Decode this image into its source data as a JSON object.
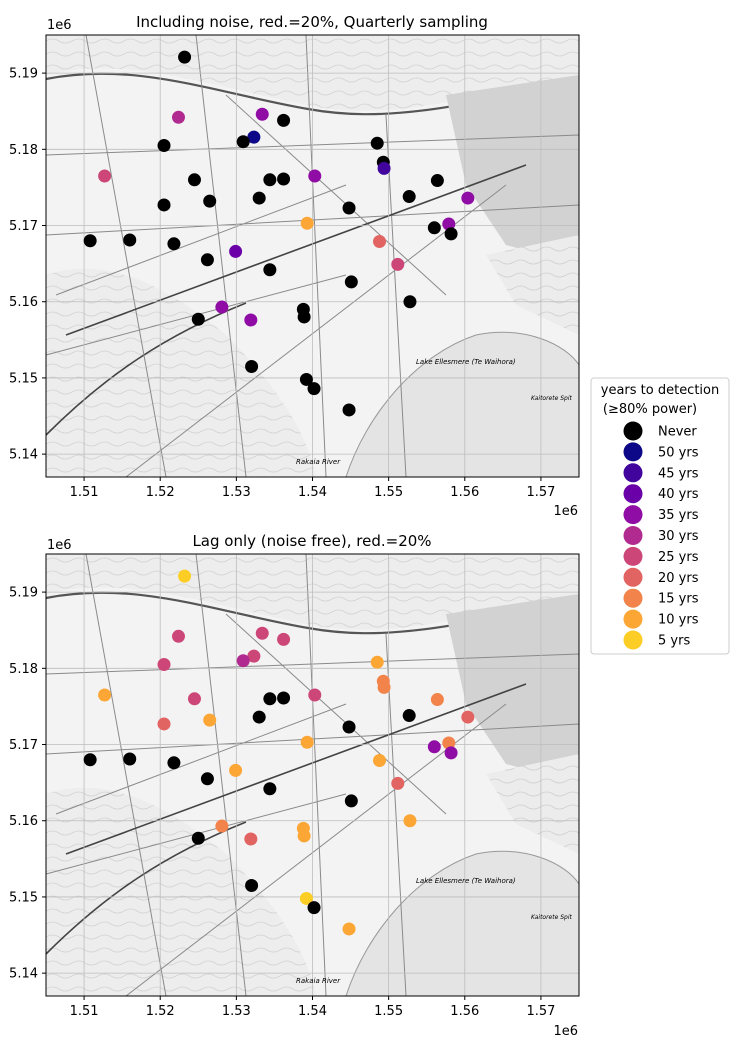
{
  "chart_data": [
    {
      "type": "scatter",
      "title": "Including noise, red.=20%, Quarterly sampling",
      "x_offset_label": "1e6",
      "y_offset_label": "1e6",
      "xlim": [
        1.505,
        1.575
      ],
      "ylim": [
        5.137,
        5.195
      ],
      "x_ticks": [
        1.51,
        1.52,
        1.53,
        1.54,
        1.55,
        1.56,
        1.57
      ],
      "x_tick_labels": [
        "1.51",
        "1.52",
        "1.53",
        "1.54",
        "1.55",
        "1.56",
        "1.57"
      ],
      "y_ticks": [
        5.14,
        5.15,
        5.16,
        5.17,
        5.18,
        5.19
      ],
      "y_tick_labels": [
        "5.14",
        "5.15",
        "5.16",
        "5.17",
        "5.18",
        "5.19"
      ],
      "basemap_labels": [
        "Lake Ellesmere (Te Waihora)",
        "Rakaia River",
        "Kaitorete Spit"
      ],
      "points": [
        {
          "x": 1.5232,
          "y": 5.1921,
          "years": "Never"
        },
        {
          "x": 1.5224,
          "y": 5.1842,
          "years": "30 yrs"
        },
        {
          "x": 1.5334,
          "y": 5.1846,
          "years": "35 yrs"
        },
        {
          "x": 1.5362,
          "y": 5.1838,
          "years": "Never"
        },
        {
          "x": 1.5323,
          "y": 5.1816,
          "years": "50 yrs"
        },
        {
          "x": 1.5309,
          "y": 5.181,
          "years": "Never"
        },
        {
          "x": 1.5205,
          "y": 5.1805,
          "years": "Never"
        },
        {
          "x": 1.5485,
          "y": 5.1808,
          "years": "Never"
        },
        {
          "x": 1.5493,
          "y": 5.1783,
          "years": "Never"
        },
        {
          "x": 1.5494,
          "y": 5.1775,
          "years": "45 yrs"
        },
        {
          "x": 1.5127,
          "y": 5.1765,
          "years": "25 yrs"
        },
        {
          "x": 1.5403,
          "y": 5.1765,
          "years": "35 yrs"
        },
        {
          "x": 1.5245,
          "y": 5.176,
          "years": "Never"
        },
        {
          "x": 1.5344,
          "y": 5.176,
          "years": "Never"
        },
        {
          "x": 1.5362,
          "y": 5.1761,
          "years": "Never"
        },
        {
          "x": 1.5564,
          "y": 5.1759,
          "years": "Never"
        },
        {
          "x": 1.5527,
          "y": 5.1738,
          "years": "Never"
        },
        {
          "x": 1.5604,
          "y": 5.1736,
          "years": "35 yrs"
        },
        {
          "x": 1.533,
          "y": 5.1736,
          "years": "Never"
        },
        {
          "x": 1.5265,
          "y": 5.1732,
          "years": "Never"
        },
        {
          "x": 1.5205,
          "y": 5.1727,
          "years": "Never"
        },
        {
          "x": 1.5448,
          "y": 5.1723,
          "years": "Never"
        },
        {
          "x": 1.5393,
          "y": 5.1703,
          "years": "10 yrs"
        },
        {
          "x": 1.5579,
          "y": 5.1702,
          "years": "35 yrs"
        },
        {
          "x": 1.556,
          "y": 5.1697,
          "years": "Never"
        },
        {
          "x": 1.5582,
          "y": 5.1689,
          "years": "Never"
        },
        {
          "x": 1.5108,
          "y": 5.168,
          "years": "Never"
        },
        {
          "x": 1.516,
          "y": 5.1681,
          "years": "Never"
        },
        {
          "x": 1.5218,
          "y": 5.1676,
          "years": "Never"
        },
        {
          "x": 1.5488,
          "y": 5.1679,
          "years": "20 yrs"
        },
        {
          "x": 1.5299,
          "y": 5.1666,
          "years": "40 yrs"
        },
        {
          "x": 1.5262,
          "y": 5.1655,
          "years": "Never"
        },
        {
          "x": 1.5512,
          "y": 5.1649,
          "years": "25 yrs"
        },
        {
          "x": 1.5344,
          "y": 5.1642,
          "years": "Never"
        },
        {
          "x": 1.5451,
          "y": 5.1626,
          "years": "Never"
        },
        {
          "x": 1.5528,
          "y": 5.16,
          "years": "Never"
        },
        {
          "x": 1.5281,
          "y": 5.1593,
          "years": "35 yrs"
        },
        {
          "x": 1.5388,
          "y": 5.159,
          "years": "Never"
        },
        {
          "x": 1.5389,
          "y": 5.158,
          "years": "Never"
        },
        {
          "x": 1.525,
          "y": 5.1577,
          "years": "Never"
        },
        {
          "x": 1.5319,
          "y": 5.1576,
          "years": "35 yrs"
        },
        {
          "x": 1.532,
          "y": 5.1515,
          "years": "Never"
        },
        {
          "x": 1.5392,
          "y": 5.1498,
          "years": "Never"
        },
        {
          "x": 1.5402,
          "y": 5.1486,
          "years": "Never"
        },
        {
          "x": 1.5448,
          "y": 5.1458,
          "years": "Never"
        }
      ]
    },
    {
      "type": "scatter",
      "title": "Lag only (noise free), red.=20%",
      "x_offset_label": "1e6",
      "y_offset_label": "1e6",
      "xlim": [
        1.505,
        1.575
      ],
      "ylim": [
        5.137,
        5.195
      ],
      "x_ticks": [
        1.51,
        1.52,
        1.53,
        1.54,
        1.55,
        1.56,
        1.57
      ],
      "x_tick_labels": [
        "1.51",
        "1.52",
        "1.53",
        "1.54",
        "1.55",
        "1.56",
        "1.57"
      ],
      "y_ticks": [
        5.14,
        5.15,
        5.16,
        5.17,
        5.18,
        5.19
      ],
      "y_tick_labels": [
        "5.14",
        "5.15",
        "5.16",
        "5.17",
        "5.18",
        "5.19"
      ],
      "basemap_labels": [
        "Lake Ellesmere (Te Waihora)",
        "Rakaia River",
        "Kaitorete Spit"
      ],
      "points": [
        {
          "x": 1.5232,
          "y": 5.1921,
          "years": "5 yrs"
        },
        {
          "x": 1.5224,
          "y": 5.1842,
          "years": "25 yrs"
        },
        {
          "x": 1.5334,
          "y": 5.1846,
          "years": "25 yrs"
        },
        {
          "x": 1.5362,
          "y": 5.1838,
          "years": "25 yrs"
        },
        {
          "x": 1.5323,
          "y": 5.1816,
          "years": "25 yrs"
        },
        {
          "x": 1.5309,
          "y": 5.181,
          "years": "30 yrs"
        },
        {
          "x": 1.5205,
          "y": 5.1805,
          "years": "25 yrs"
        },
        {
          "x": 1.5485,
          "y": 5.1808,
          "years": "10 yrs"
        },
        {
          "x": 1.5493,
          "y": 5.1783,
          "years": "15 yrs"
        },
        {
          "x": 1.5494,
          "y": 5.1775,
          "years": "15 yrs"
        },
        {
          "x": 1.5127,
          "y": 5.1765,
          "years": "10 yrs"
        },
        {
          "x": 1.5403,
          "y": 5.1765,
          "years": "25 yrs"
        },
        {
          "x": 1.5245,
          "y": 5.176,
          "years": "25 yrs"
        },
        {
          "x": 1.5344,
          "y": 5.176,
          "years": "Never"
        },
        {
          "x": 1.5362,
          "y": 5.1761,
          "years": "Never"
        },
        {
          "x": 1.5564,
          "y": 5.1759,
          "years": "15 yrs"
        },
        {
          "x": 1.5527,
          "y": 5.1738,
          "years": "Never"
        },
        {
          "x": 1.5604,
          "y": 5.1736,
          "years": "20 yrs"
        },
        {
          "x": 1.533,
          "y": 5.1736,
          "years": "Never"
        },
        {
          "x": 1.5265,
          "y": 5.1732,
          "years": "10 yrs"
        },
        {
          "x": 1.5205,
          "y": 5.1727,
          "years": "20 yrs"
        },
        {
          "x": 1.5448,
          "y": 5.1723,
          "years": "Never"
        },
        {
          "x": 1.5393,
          "y": 5.1703,
          "years": "10 yrs"
        },
        {
          "x": 1.5579,
          "y": 5.1702,
          "years": "15 yrs"
        },
        {
          "x": 1.556,
          "y": 5.1697,
          "years": "35 yrs"
        },
        {
          "x": 1.5582,
          "y": 5.1689,
          "years": "35 yrs"
        },
        {
          "x": 1.5108,
          "y": 5.168,
          "years": "Never"
        },
        {
          "x": 1.516,
          "y": 5.1681,
          "years": "Never"
        },
        {
          "x": 1.5218,
          "y": 5.1676,
          "years": "Never"
        },
        {
          "x": 1.5488,
          "y": 5.1679,
          "years": "10 yrs"
        },
        {
          "x": 1.5299,
          "y": 5.1666,
          "years": "10 yrs"
        },
        {
          "x": 1.5262,
          "y": 5.1655,
          "years": "Never"
        },
        {
          "x": 1.5512,
          "y": 5.1649,
          "years": "20 yrs"
        },
        {
          "x": 1.5344,
          "y": 5.1642,
          "years": "Never"
        },
        {
          "x": 1.5451,
          "y": 5.1626,
          "years": "Never"
        },
        {
          "x": 1.5528,
          "y": 5.16,
          "years": "10 yrs"
        },
        {
          "x": 1.5281,
          "y": 5.1593,
          "years": "15 yrs"
        },
        {
          "x": 1.5388,
          "y": 5.159,
          "years": "10 yrs"
        },
        {
          "x": 1.5389,
          "y": 5.158,
          "years": "10 yrs"
        },
        {
          "x": 1.525,
          "y": 5.1577,
          "years": "Never"
        },
        {
          "x": 1.5319,
          "y": 5.1576,
          "years": "20 yrs"
        },
        {
          "x": 1.532,
          "y": 5.1515,
          "years": "Never"
        },
        {
          "x": 1.5392,
          "y": 5.1498,
          "years": "5 yrs"
        },
        {
          "x": 1.5402,
          "y": 5.1486,
          "years": "Never"
        },
        {
          "x": 1.5448,
          "y": 5.1458,
          "years": "10 yrs"
        }
      ]
    }
  ],
  "legend": {
    "title_line1": "years to detection",
    "title_line2": "(≥80% power)",
    "entries": [
      {
        "label": "Never",
        "color": "#000000"
      },
      {
        "label": "50 yrs",
        "color": "#0d0887"
      },
      {
        "label": "45 yrs",
        "color": "#41049d"
      },
      {
        "label": "40 yrs",
        "color": "#6a00a8"
      },
      {
        "label": "35 yrs",
        "color": "#8f0da4"
      },
      {
        "label": "30 yrs",
        "color": "#b12a90"
      },
      {
        "label": "25 yrs",
        "color": "#cc4778"
      },
      {
        "label": "20 yrs",
        "color": "#e16462"
      },
      {
        "label": "15 yrs",
        "color": "#f2844b"
      },
      {
        "label": "10 yrs",
        "color": "#fca636"
      },
      {
        "label": "5 yrs",
        "color": "#fcce25"
      }
    ]
  }
}
